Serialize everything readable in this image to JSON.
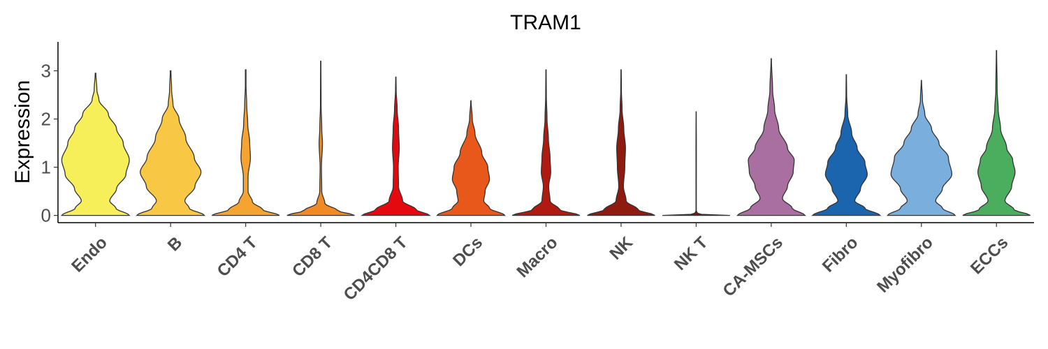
{
  "chart_data": {
    "type": "violin",
    "title": "TRAM1",
    "xlabel": "",
    "ylabel": "Expression",
    "ylim": [
      -0.15,
      3.6
    ],
    "yticks": [
      0,
      1,
      2,
      3
    ],
    "grid": false,
    "legend": "none",
    "categories": [
      "Endo",
      "B",
      "CD4 T",
      "CD8 T",
      "CD4CD8 T",
      "DCs",
      "Macro",
      "NK",
      "NK T",
      "CA-MSCs",
      "Fibro",
      "Myofibro",
      "ECCs"
    ],
    "colors": [
      "#F7EF5A",
      "#F8C844",
      "#F5A331",
      "#F08A24",
      "#E3090F",
      "#E8581A",
      "#B01A10",
      "#8E1A10",
      "#7A1A10",
      "#A86FA0",
      "#1B65AF",
      "#7AAEDD",
      "#4BAE5E"
    ],
    "series": [
      {
        "category": "Endo",
        "max": 2.95,
        "profile": [
          [
            0,
            1.0
          ],
          [
            0.15,
            0.6
          ],
          [
            0.3,
            0.42
          ],
          [
            0.55,
            0.62
          ],
          [
            0.85,
            0.9
          ],
          [
            1.15,
            1.0
          ],
          [
            1.5,
            0.82
          ],
          [
            1.8,
            0.62
          ],
          [
            2.1,
            0.38
          ],
          [
            2.4,
            0.1
          ],
          [
            2.6,
            0.04
          ],
          [
            2.95,
            0.01
          ]
        ]
      },
      {
        "category": "B",
        "max": 3.0,
        "profile": [
          [
            0,
            1.0
          ],
          [
            0.15,
            0.55
          ],
          [
            0.3,
            0.42
          ],
          [
            0.6,
            0.72
          ],
          [
            0.9,
            0.9
          ],
          [
            1.2,
            0.7
          ],
          [
            1.6,
            0.45
          ],
          [
            2.0,
            0.25
          ],
          [
            2.3,
            0.07
          ],
          [
            2.6,
            0.03
          ],
          [
            3.0,
            0.01
          ]
        ]
      },
      {
        "category": "CD4 T",
        "max": 3.02,
        "profile": [
          [
            0,
            1.0
          ],
          [
            0.12,
            0.5
          ],
          [
            0.28,
            0.2
          ],
          [
            0.5,
            0.07
          ],
          [
            0.8,
            0.07
          ],
          [
            1.2,
            0.14
          ],
          [
            1.5,
            0.12
          ],
          [
            1.9,
            0.06
          ],
          [
            2.3,
            0.03
          ],
          [
            2.7,
            0.01
          ],
          [
            3.02,
            0.01
          ]
        ]
      },
      {
        "category": "CD8 T",
        "max": 3.2,
        "profile": [
          [
            0,
            1.0
          ],
          [
            0.1,
            0.5
          ],
          [
            0.25,
            0.12
          ],
          [
            0.5,
            0.03
          ],
          [
            1.0,
            0.02
          ],
          [
            1.5,
            0.05
          ],
          [
            1.8,
            0.03
          ],
          [
            2.3,
            0.01
          ],
          [
            3.2,
            0.005
          ]
        ]
      },
      {
        "category": "CD4CD8 T",
        "max": 2.87,
        "profile": [
          [
            0,
            1.0
          ],
          [
            0.12,
            0.6
          ],
          [
            0.3,
            0.2
          ],
          [
            0.6,
            0.08
          ],
          [
            1.0,
            0.07
          ],
          [
            1.4,
            0.1
          ],
          [
            1.8,
            0.08
          ],
          [
            2.2,
            0.04
          ],
          [
            2.6,
            0.01
          ],
          [
            2.87,
            0.005
          ]
        ]
      },
      {
        "category": "DCs",
        "max": 2.38,
        "profile": [
          [
            0,
            1.0
          ],
          [
            0.15,
            0.55
          ],
          [
            0.3,
            0.38
          ],
          [
            0.5,
            0.42
          ],
          [
            0.75,
            0.55
          ],
          [
            1.0,
            0.5
          ],
          [
            1.3,
            0.32
          ],
          [
            1.7,
            0.12
          ],
          [
            2.0,
            0.04
          ],
          [
            2.38,
            0.005
          ]
        ]
      },
      {
        "category": "Macro",
        "max": 3.02,
        "profile": [
          [
            0,
            1.0
          ],
          [
            0.12,
            0.4
          ],
          [
            0.3,
            0.12
          ],
          [
            0.6,
            0.08
          ],
          [
            0.9,
            0.14
          ],
          [
            1.2,
            0.12
          ],
          [
            1.6,
            0.07
          ],
          [
            2.0,
            0.03
          ],
          [
            2.5,
            0.01
          ],
          [
            3.02,
            0.005
          ]
        ]
      },
      {
        "category": "NK",
        "max": 3.02,
        "profile": [
          [
            0,
            1.0
          ],
          [
            0.12,
            0.5
          ],
          [
            0.3,
            0.15
          ],
          [
            0.6,
            0.07
          ],
          [
            1.0,
            0.11
          ],
          [
            1.4,
            0.13
          ],
          [
            1.8,
            0.08
          ],
          [
            2.2,
            0.03
          ],
          [
            2.6,
            0.01
          ],
          [
            3.02,
            0.005
          ]
        ]
      },
      {
        "category": "NK T",
        "max": 2.15,
        "profile": [
          [
            0,
            1.0
          ],
          [
            0.03,
            0.05
          ],
          [
            0.1,
            0.005
          ],
          [
            1.45,
            0.006
          ],
          [
            2.15,
            0.003
          ]
        ]
      },
      {
        "category": "CA-MSCs",
        "max": 3.25,
        "profile": [
          [
            0,
            1.0
          ],
          [
            0.15,
            0.62
          ],
          [
            0.35,
            0.33
          ],
          [
            0.6,
            0.48
          ],
          [
            0.9,
            0.65
          ],
          [
            1.15,
            0.68
          ],
          [
            1.4,
            0.48
          ],
          [
            1.8,
            0.22
          ],
          [
            2.2,
            0.1
          ],
          [
            2.6,
            0.04
          ],
          [
            3.25,
            0.005
          ]
        ]
      },
      {
        "category": "Fibro",
        "max": 2.92,
        "profile": [
          [
            0,
            1.0
          ],
          [
            0.15,
            0.55
          ],
          [
            0.3,
            0.25
          ],
          [
            0.55,
            0.42
          ],
          [
            0.85,
            0.62
          ],
          [
            1.1,
            0.55
          ],
          [
            1.4,
            0.32
          ],
          [
            1.7,
            0.16
          ],
          [
            2.1,
            0.04
          ],
          [
            2.5,
            0.01
          ],
          [
            2.92,
            0.005
          ]
        ]
      },
      {
        "category": "Myofibro",
        "max": 2.8,
        "profile": [
          [
            0,
            1.0
          ],
          [
            0.15,
            0.62
          ],
          [
            0.3,
            0.42
          ],
          [
            0.55,
            0.62
          ],
          [
            0.85,
            0.9
          ],
          [
            1.2,
            0.8
          ],
          [
            1.5,
            0.52
          ],
          [
            1.8,
            0.3
          ],
          [
            2.1,
            0.1
          ],
          [
            2.4,
            0.03
          ],
          [
            2.8,
            0.005
          ]
        ]
      },
      {
        "category": "ECCs",
        "max": 3.42,
        "profile": [
          [
            0,
            1.0
          ],
          [
            0.12,
            0.52
          ],
          [
            0.3,
            0.25
          ],
          [
            0.6,
            0.45
          ],
          [
            0.9,
            0.55
          ],
          [
            1.15,
            0.48
          ],
          [
            1.4,
            0.3
          ],
          [
            1.8,
            0.12
          ],
          [
            2.2,
            0.05
          ],
          [
            2.6,
            0.02
          ],
          [
            3.42,
            0.005
          ]
        ]
      }
    ]
  }
}
